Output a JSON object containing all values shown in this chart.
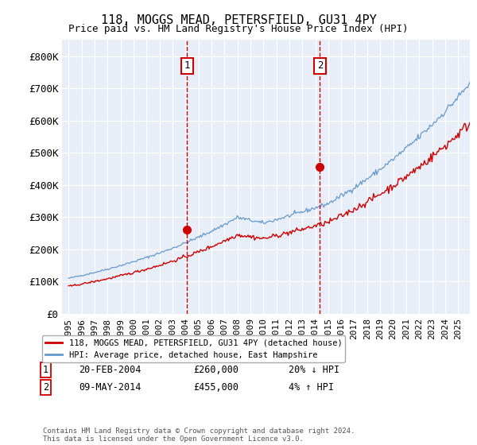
{
  "title": "118, MOGGS MEAD, PETERSFIELD, GU31 4PY",
  "subtitle": "Price paid vs. HM Land Registry's House Price Index (HPI)",
  "background_color": "#ffffff",
  "plot_bg_color": "#e8eef8",
  "grid_color": "#ffffff",
  "ylim": [
    0,
    850000
  ],
  "yticks": [
    0,
    100000,
    200000,
    300000,
    400000,
    500000,
    600000,
    700000,
    800000
  ],
  "ytick_labels": [
    "£0",
    "£100K",
    "£200K",
    "£300K",
    "£400K",
    "£500K",
    "£600K",
    "£700K",
    "£800K"
  ],
  "xlim_start": 1994.5,
  "xlim_end": 2025.9,
  "xticks": [
    1995,
    1996,
    1997,
    1998,
    1999,
    2000,
    2001,
    2002,
    2003,
    2004,
    2005,
    2006,
    2007,
    2008,
    2009,
    2010,
    2011,
    2012,
    2013,
    2014,
    2015,
    2016,
    2017,
    2018,
    2019,
    2020,
    2021,
    2022,
    2023,
    2024,
    2025
  ],
  "sale1_x": 2004.13,
  "sale1_y": 260000,
  "sale1_label": "1",
  "sale1_date": "20-FEB-2004",
  "sale1_price": "£260,000",
  "sale1_hpi": "20% ↓ HPI",
  "sale2_x": 2014.36,
  "sale2_y": 455000,
  "sale2_label": "2",
  "sale2_date": "09-MAY-2014",
  "sale2_price": "£455,000",
  "sale2_hpi": "4% ↑ HPI",
  "line_color_red": "#cc0000",
  "line_color_blue": "#6699cc",
  "legend_label_red": "118, MOGGS MEAD, PETERSFIELD, GU31 4PY (detached house)",
  "legend_label_blue": "HPI: Average price, detached house, East Hampshire",
  "footer": "Contains HM Land Registry data © Crown copyright and database right 2024.\nThis data is licensed under the Open Government Licence v3.0."
}
